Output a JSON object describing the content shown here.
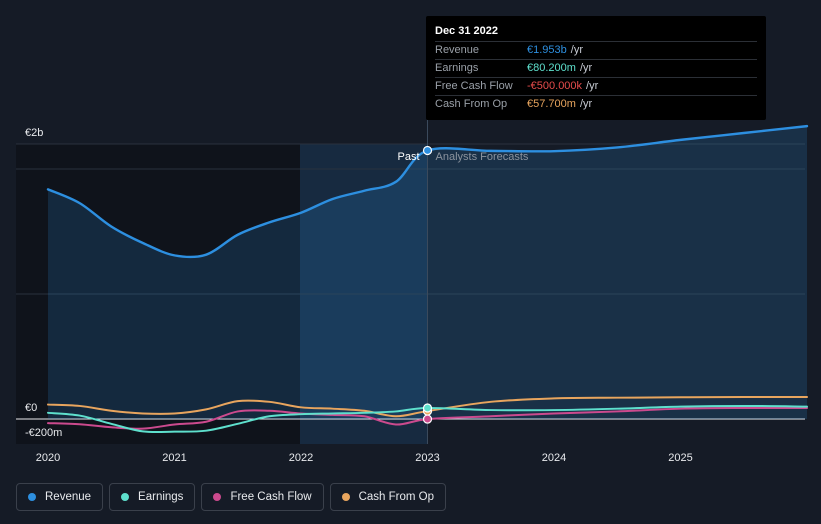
{
  "chart_data": {
    "type": "line",
    "x_axis": {
      "ticks": [
        "2020",
        "2021",
        "2022",
        "2023",
        "2024",
        "2025"
      ],
      "range": [
        2020.0,
        2026.0
      ]
    },
    "y_axis": {
      "ticks": [
        {
          "value": 2000,
          "label": "€2b"
        },
        {
          "value": 0,
          "label": "€0"
        },
        {
          "value": -200,
          "label": "-€200m"
        }
      ],
      "unit": "€m"
    },
    "past_label": "Past",
    "forecast_label": "Analysts Forecasts",
    "divider_x": 2023.0,
    "series": [
      {
        "name": "Revenue",
        "color": "#2d8fe0",
        "area": true,
        "points": [
          [
            2020.0,
            1670
          ],
          [
            2020.25,
            1570
          ],
          [
            2020.5,
            1400
          ],
          [
            2020.75,
            1280
          ],
          [
            2021.0,
            1190
          ],
          [
            2021.25,
            1195
          ],
          [
            2021.5,
            1340
          ],
          [
            2021.75,
            1430
          ],
          [
            2022.0,
            1500
          ],
          [
            2022.25,
            1600
          ],
          [
            2022.5,
            1660
          ],
          [
            2022.75,
            1725
          ],
          [
            2023.0,
            1953
          ],
          [
            2023.5,
            1950
          ],
          [
            2024.0,
            1948
          ],
          [
            2024.5,
            1975
          ],
          [
            2025.0,
            2030
          ],
          [
            2025.5,
            2080
          ],
          [
            2026.0,
            2130
          ]
        ]
      },
      {
        "name": "Earnings",
        "color": "#5ee0cd",
        "area": false,
        "points": [
          [
            2020.0,
            45
          ],
          [
            2020.25,
            25
          ],
          [
            2020.5,
            -35
          ],
          [
            2020.75,
            -90
          ],
          [
            2021.0,
            -92
          ],
          [
            2021.25,
            -85
          ],
          [
            2021.5,
            -35
          ],
          [
            2021.75,
            20
          ],
          [
            2022.0,
            35
          ],
          [
            2022.25,
            40
          ],
          [
            2022.5,
            45
          ],
          [
            2022.75,
            55
          ],
          [
            2023.0,
            80.2
          ],
          [
            2023.5,
            65
          ],
          [
            2024.0,
            65
          ],
          [
            2024.5,
            75
          ],
          [
            2025.0,
            90
          ],
          [
            2025.5,
            95
          ],
          [
            2026.0,
            90
          ]
        ]
      },
      {
        "name": "Free Cash Flow",
        "color": "#cc4a8e",
        "area": false,
        "points": [
          [
            2020.0,
            -30
          ],
          [
            2020.25,
            -38
          ],
          [
            2020.5,
            -60
          ],
          [
            2020.75,
            -70
          ],
          [
            2021.0,
            -40
          ],
          [
            2021.25,
            -20
          ],
          [
            2021.5,
            55
          ],
          [
            2021.75,
            60
          ],
          [
            2022.0,
            40
          ],
          [
            2022.25,
            30
          ],
          [
            2022.5,
            20
          ],
          [
            2022.75,
            -40
          ],
          [
            2023.0,
            -0.5
          ],
          [
            2023.5,
            20
          ],
          [
            2024.0,
            40
          ],
          [
            2024.5,
            55
          ],
          [
            2025.0,
            75
          ],
          [
            2025.5,
            80
          ],
          [
            2026.0,
            80
          ]
        ]
      },
      {
        "name": "Cash From Op",
        "color": "#e8a55e",
        "area": false,
        "points": [
          [
            2020.0,
            105
          ],
          [
            2020.25,
            95
          ],
          [
            2020.5,
            60
          ],
          [
            2020.75,
            40
          ],
          [
            2021.0,
            40
          ],
          [
            2021.25,
            70
          ],
          [
            2021.5,
            130
          ],
          [
            2021.75,
            125
          ],
          [
            2022.0,
            85
          ],
          [
            2022.25,
            75
          ],
          [
            2022.5,
            60
          ],
          [
            2022.75,
            20
          ],
          [
            2023.0,
            57.7
          ],
          [
            2023.5,
            125
          ],
          [
            2024.0,
            150
          ],
          [
            2024.5,
            155
          ],
          [
            2025.0,
            158
          ],
          [
            2025.5,
            160
          ],
          [
            2026.0,
            160
          ]
        ]
      }
    ],
    "tooltip": {
      "date": "Dec 31 2022",
      "rows": [
        {
          "name": "Revenue",
          "value": "€1.953b",
          "unit": "/yr",
          "color": "#2d8fe0"
        },
        {
          "name": "Earnings",
          "value": "€80.200m",
          "unit": "/yr",
          "color": "#5ee0cd"
        },
        {
          "name": "Free Cash Flow",
          "value": "-€500.000k",
          "unit": "/yr",
          "color": "#e64c4c"
        },
        {
          "name": "Cash From Op",
          "value": "€57.700m",
          "unit": "/yr",
          "color": "#e8a55e"
        }
      ]
    },
    "legend": [
      {
        "name": "Revenue",
        "color": "#2d8fe0"
      },
      {
        "name": "Earnings",
        "color": "#5ee0cd"
      },
      {
        "name": "Free Cash Flow",
        "color": "#cc4a8e"
      },
      {
        "name": "Cash From Op",
        "color": "#e8a55e"
      }
    ]
  }
}
